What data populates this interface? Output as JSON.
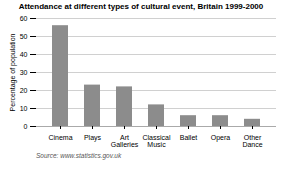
{
  "chart_data": {
    "type": "bar",
    "title": "Attendance at different types of cultural event, Britain 1999-2000",
    "categories": [
      "Cinema",
      "Plays",
      "Art\nGalleries",
      "Classical\nMusic",
      "Ballet",
      "Opera",
      "Other\nDance"
    ],
    "values": [
      56,
      23,
      22,
      12,
      6,
      6,
      4
    ],
    "color": "#8c8c8c",
    "ylabel": "Percentage of population",
    "ylim": [
      0,
      60
    ],
    "yticks": [
      0,
      10,
      20,
      30,
      40,
      50,
      60
    ],
    "grid": true,
    "source": "Source: www.statistics.gov.uk"
  }
}
